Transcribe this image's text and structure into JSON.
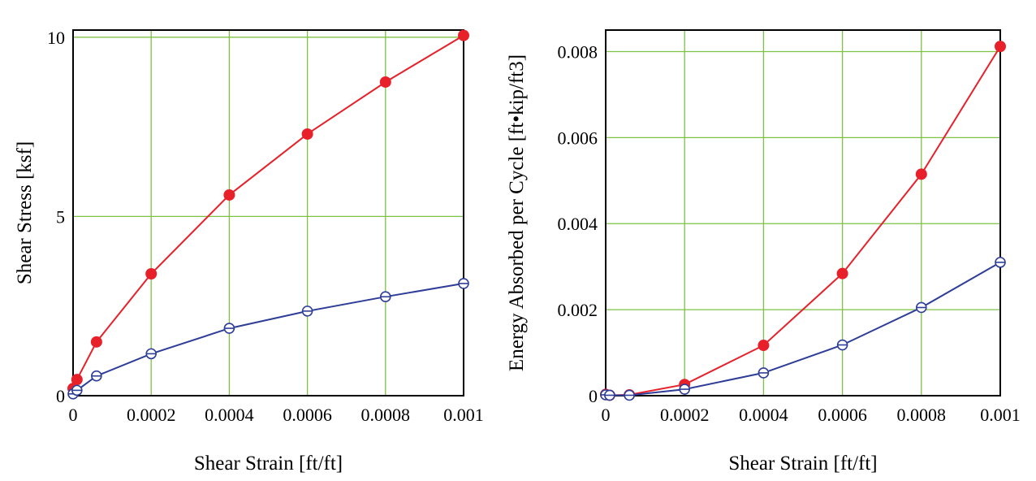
{
  "chart_data": [
    {
      "type": "line",
      "title": "",
      "xlabel": "Shear Strain [ft/ft]",
      "ylabel": "Shear Stress [ksf]",
      "xlim": [
        0,
        0.001
      ],
      "ylim": [
        0,
        10.2
      ],
      "grid": true,
      "x_ticks": [
        0,
        0.0002,
        0.0004,
        0.0006,
        0.0008,
        0.001
      ],
      "x_tick_labels": [
        "0",
        "0.0002",
        "0.0004",
        "0.0006",
        "0.0008",
        "0.001"
      ],
      "y_ticks": [
        0,
        5,
        10
      ],
      "y_tick_labels": [
        "0",
        "5",
        "10"
      ],
      "series": [
        {
          "color": "#e8202a",
          "marker": "filled-circle",
          "x": [
            0,
            1e-05,
            6e-05,
            0.0002,
            0.0004,
            0.0006,
            0.0008,
            0.001
          ],
          "y": [
            0.2,
            0.45,
            1.5,
            3.4,
            5.6,
            7.3,
            8.75,
            10.05
          ]
        },
        {
          "color": "#2e3d98",
          "marker": "open-circle",
          "x": [
            0,
            1e-05,
            6e-05,
            0.0002,
            0.0004,
            0.0006,
            0.0008,
            0.001
          ],
          "y": [
            0.05,
            0.15,
            0.55,
            1.17,
            1.88,
            2.36,
            2.76,
            3.13
          ]
        }
      ]
    },
    {
      "type": "line",
      "title": "",
      "xlabel": "Shear Strain [ft/ft]",
      "ylabel": "Energy Absorbed per Cycle [ft•kip/ft3]",
      "xlim": [
        0,
        0.001
      ],
      "ylim": [
        0,
        0.0085
      ],
      "grid": true,
      "x_ticks": [
        0,
        0.0002,
        0.0004,
        0.0006,
        0.0008,
        0.001
      ],
      "x_tick_labels": [
        "0",
        "0.0002",
        "0.0004",
        "0.0006",
        "0.0008",
        "0.001"
      ],
      "y_ticks": [
        0,
        0.002,
        0.004,
        0.006,
        0.008
      ],
      "y_tick_labels": [
        "0",
        "0.002",
        "0.004",
        "0.006",
        "0.008"
      ],
      "series": [
        {
          "color": "#e8202a",
          "marker": "filled-circle",
          "x": [
            0,
            1e-05,
            6e-05,
            0.0002,
            0.0004,
            0.0006,
            0.0008,
            0.001
          ],
          "y": [
            3e-05,
            1e-05,
            2e-05,
            0.00026,
            0.00117,
            0.00284,
            0.00515,
            0.00812
          ]
        },
        {
          "color": "#2e3d98",
          "marker": "open-circle",
          "x": [
            0,
            1e-05,
            6e-05,
            0.0002,
            0.0004,
            0.0006,
            0.0008,
            0.001
          ],
          "y": [
            2e-05,
            1e-05,
            1e-05,
            0.00015,
            0.00053,
            0.00118,
            0.00205,
            0.0031
          ]
        }
      ]
    }
  ]
}
